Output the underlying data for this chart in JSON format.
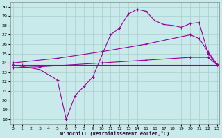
{
  "bg_color": "#c8eaea",
  "grid_color": "#aacccc",
  "line_color": "#990099",
  "x_ticks": [
    0,
    1,
    2,
    3,
    4,
    5,
    6,
    7,
    8,
    9,
    10,
    11,
    12,
    13,
    14,
    15,
    16,
    17,
    18,
    19,
    20,
    21,
    22,
    23
  ],
  "y_ticks": [
    18,
    19,
    20,
    21,
    22,
    23,
    24,
    25,
    26,
    27,
    28,
    29,
    30
  ],
  "ylim": [
    17.5,
    30.5
  ],
  "xlim": [
    -0.3,
    23.3
  ],
  "xlabel": "Windchill (Refroidissement éolien,°C)",
  "series": [
    {
      "x": [
        0,
        1,
        23
      ],
      "y": [
        23.8,
        23.8,
        23.8
      ]
    },
    {
      "x": [
        0,
        3,
        10,
        15,
        20,
        22,
        23
      ],
      "y": [
        23.5,
        23.6,
        24.0,
        24.3,
        24.6,
        24.6,
        23.8
      ]
    },
    {
      "x": [
        0,
        5,
        10,
        15,
        20,
        21,
        22,
        23
      ],
      "y": [
        24.0,
        24.5,
        25.2,
        26.0,
        27.0,
        26.6,
        25.2,
        23.9
      ]
    },
    {
      "x": [
        0,
        3,
        5,
        6,
        7,
        8,
        9,
        11,
        12,
        13,
        14,
        15,
        16,
        17,
        18,
        19,
        20,
        21,
        22,
        23
      ],
      "y": [
        23.8,
        23.3,
        22.2,
        18.0,
        20.5,
        21.5,
        22.5,
        27.0,
        27.7,
        29.2,
        29.7,
        29.5,
        28.5,
        28.1,
        28.0,
        27.8,
        28.2,
        28.3,
        25.0,
        23.8
      ]
    }
  ]
}
